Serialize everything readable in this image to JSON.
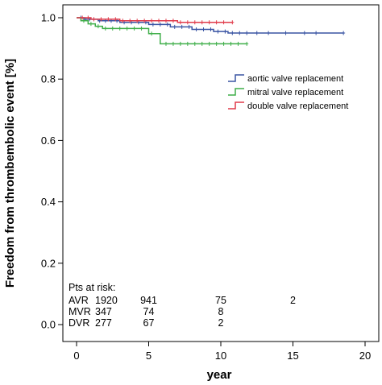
{
  "chart_data": {
    "type": "line",
    "step": true,
    "xlabel": "year",
    "ylabel": "Freedom from thrombembolic event [%]",
    "xlim": [
      0,
      20
    ],
    "ylim": [
      0,
      1.0
    ],
    "xticks": [
      0,
      5,
      10,
      15,
      20
    ],
    "yticks": [
      0.0,
      0.2,
      0.4,
      0.6,
      0.8,
      1.0
    ],
    "ytick_labels": [
      "0.0",
      "0.2",
      "0.4",
      "0.6",
      "0.8",
      "1.0"
    ],
    "grid": false,
    "legend_position": "right",
    "series": [
      {
        "name": "aortic valve replacement",
        "color": "#3a55a4",
        "x": [
          0,
          0.5,
          1.5,
          3,
          5,
          6.5,
          8,
          9.5,
          10.5,
          18.5
        ],
        "y": [
          1.0,
          0.995,
          0.99,
          0.985,
          0.978,
          0.97,
          0.962,
          0.955,
          0.95,
          0.95
        ],
        "censor_x": [
          0.3,
          0.6,
          0.9,
          1.2,
          1.6,
          2.0,
          2.4,
          2.8,
          3.3,
          3.8,
          4.3,
          4.8,
          5.3,
          5.8,
          6.3,
          6.8,
          7.3,
          7.8,
          8.3,
          8.8,
          9.3,
          9.8,
          10.3,
          10.8,
          11.3,
          11.8,
          12.5,
          13.3,
          14.5,
          15.8,
          16.6,
          18.5
        ]
      },
      {
        "name": "mitral valve replacement",
        "color": "#3fae49",
        "x": [
          0,
          0.3,
          0.8,
          1.3,
          1.8,
          5.0,
          5.8,
          11.8
        ],
        "y": [
          1.0,
          0.99,
          0.98,
          0.972,
          0.965,
          0.948,
          0.915,
          0.915
        ],
        "censor_x": [
          0.5,
          1.0,
          1.5,
          2.0,
          2.5,
          3.0,
          3.5,
          4.0,
          4.5,
          5.2,
          6.2,
          6.7,
          7.2,
          7.7,
          8.2,
          8.7,
          9.2,
          9.7,
          10.2,
          10.7,
          11.2,
          11.8
        ]
      },
      {
        "name": "double valve replacement",
        "color": "#e03a4a",
        "x": [
          0,
          1.0,
          3.0,
          7.0,
          10.8
        ],
        "y": [
          1.0,
          0.995,
          0.99,
          0.985,
          0.985
        ],
        "censor_x": [
          0.4,
          0.8,
          1.2,
          1.7,
          2.2,
          2.7,
          3.2,
          3.7,
          4.2,
          4.7,
          5.2,
          5.7,
          6.2,
          6.7,
          7.2,
          7.7,
          8.2,
          8.7,
          9.2,
          9.7,
          10.2,
          10.8
        ]
      }
    ],
    "risk_table": {
      "title": "Pts at risk:",
      "rows": [
        {
          "label": "AVR",
          "counts": [
            "1920",
            "941",
            "75",
            "2"
          ],
          "at_x": [
            0,
            5,
            10,
            15
          ]
        },
        {
          "label": "MVR",
          "counts": [
            "347",
            "74",
            "8"
          ],
          "at_x": [
            0,
            5,
            10
          ]
        },
        {
          "label": "DVR",
          "counts": [
            "277",
            "67",
            "2"
          ],
          "at_x": [
            0,
            5,
            10
          ]
        }
      ]
    }
  }
}
